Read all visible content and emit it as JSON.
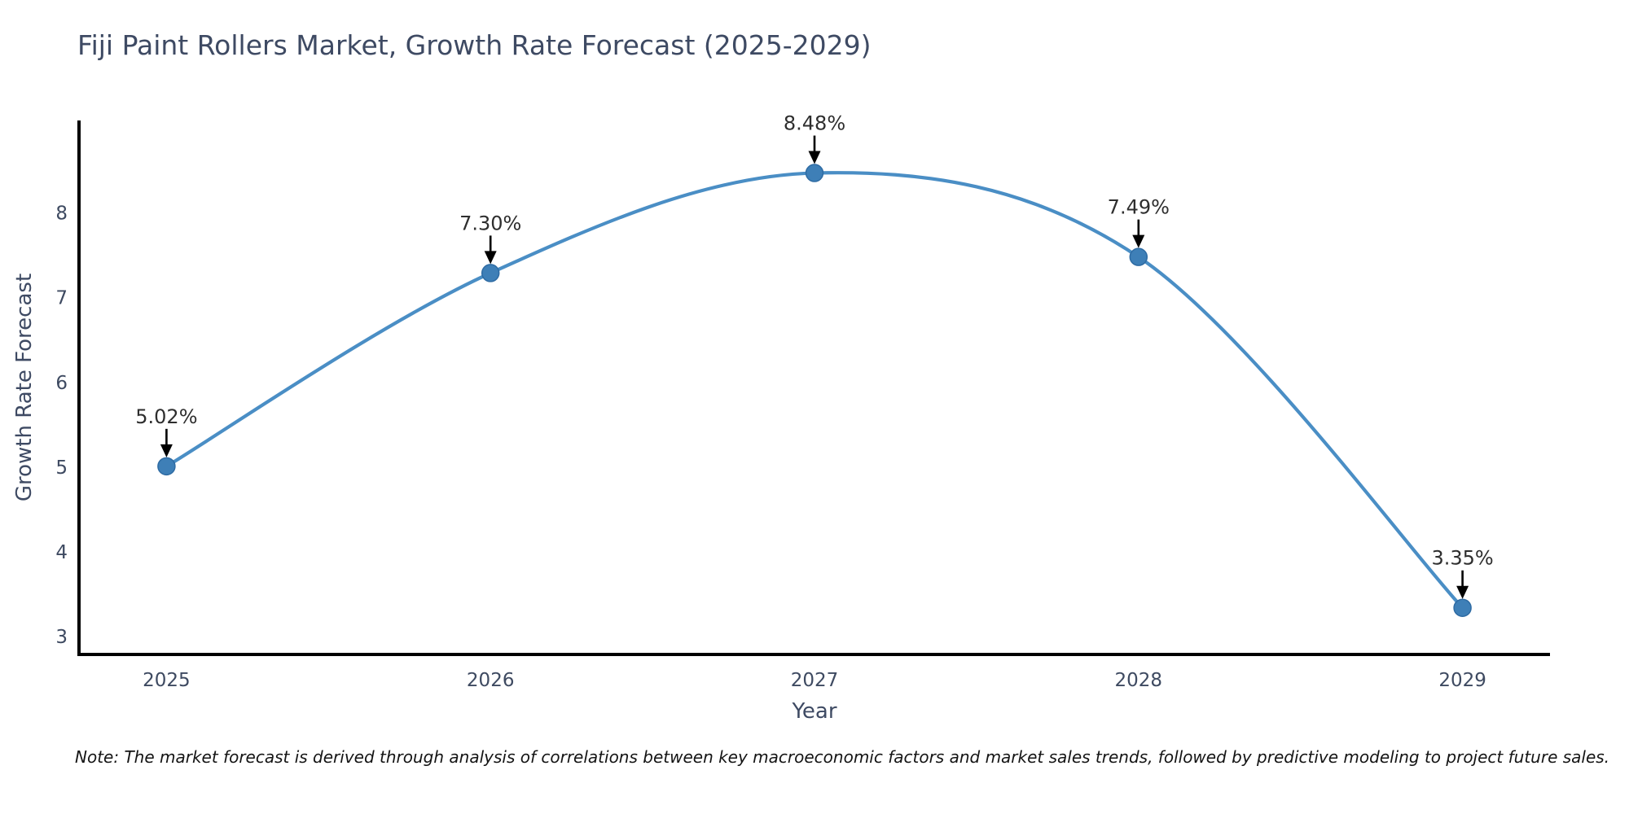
{
  "chart_data": {
    "type": "line",
    "title": "Fiji Paint Rollers Market, Growth Rate Forecast (2025-2029)",
    "xlabel": "Year",
    "ylabel": "Growth Rate Forecast",
    "x": [
      2025,
      2026,
      2027,
      2028,
      2029
    ],
    "series": [
      {
        "name": "Growth Rate Forecast",
        "values": [
          5.02,
          7.3,
          8.48,
          7.49,
          3.35
        ]
      }
    ],
    "point_labels": [
      "5.02%",
      "7.30%",
      "8.48%",
      "7.49%",
      "3.35%"
    ],
    "x_tick_labels": [
      "2025",
      "2026",
      "2027",
      "2028",
      "2029"
    ],
    "y_ticks": [
      3,
      4,
      5,
      6,
      7,
      8
    ],
    "y_tick_labels": [
      "3",
      "4",
      "5",
      "6",
      "7",
      "8"
    ],
    "xlim": [
      2024.73,
      2029.27
    ],
    "ylim": [
      2.8,
      9.1
    ],
    "grid": false,
    "legend_position": "none",
    "smooth": true,
    "footnote": "Note: The market forecast is derived through analysis of correlations between key macroeconomic factors and market sales trends, followed by predictive modeling to project future sales.",
    "colors": {
      "line": "#4a8ec5",
      "marker_fill": "#3e7fb7",
      "marker_edge": "#2e6ba3",
      "spine": "#000000",
      "tick_text": "#3e4a61",
      "annotation_text": "#2e2e2e",
      "arrow": "#000000",
      "title_text": "#3e4a63"
    }
  }
}
